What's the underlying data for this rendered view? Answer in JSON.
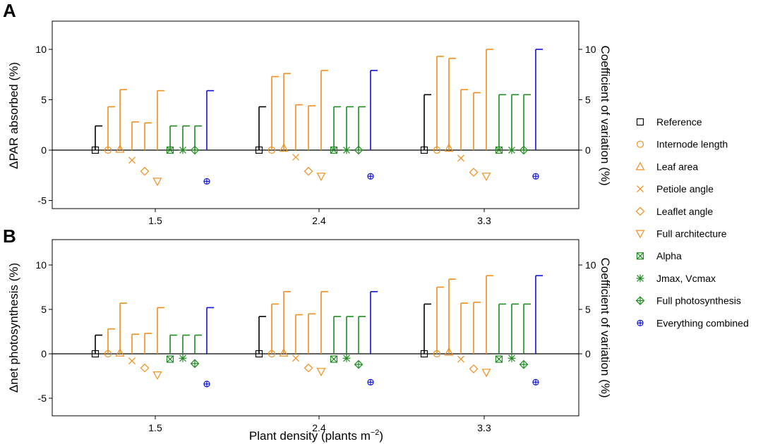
{
  "chart_data": {
    "type": "scatter",
    "shared_xlabel": "Plant density (plants m",
    "shared_xlabel_exponent": "−2",
    "shared_xlabel_suffix": ")",
    "categories": [
      "1.5",
      "2.4",
      "3.3"
    ],
    "legend": {
      "position": "right",
      "entries": [
        {
          "name": "Reference",
          "symbol": "square",
          "color": "#000000"
        },
        {
          "name": "Internode length",
          "symbol": "circle",
          "color": "#F28E1C"
        },
        {
          "name": "Leaf area",
          "symbol": "triangle-up",
          "color": "#F28E1C"
        },
        {
          "name": "Petiole angle",
          "symbol": "cross",
          "color": "#F28E1C"
        },
        {
          "name": "Leaflet angle",
          "symbol": "diamond",
          "color": "#F28E1C"
        },
        {
          "name": "Full architecture",
          "symbol": "triangle-down",
          "color": "#F28E1C"
        },
        {
          "name": "Alpha",
          "symbol": "boxed-x",
          "color": "#1E8C1E"
        },
        {
          "name": "Jmax, Vcmax",
          "symbol": "asterisk",
          "color": "#1E8C1E"
        },
        {
          "name": "Full photosynthesis",
          "symbol": "diamond-plus",
          "color": "#1E8C1E"
        },
        {
          "name": "Everything combined",
          "symbol": "circle-plus",
          "color": "#1010E0"
        }
      ]
    },
    "panels": [
      {
        "label": "A",
        "ylabel": "ΔPAR absorbed (%)",
        "y2label": "Coefficient of variation (%)",
        "ylim": [
          -5.8,
          12.8
        ],
        "y_ticks": [
          -5,
          0,
          5,
          10
        ],
        "y2_ticks": [
          0,
          5,
          10
        ],
        "reference_line": 0,
        "series": [
          {
            "name": "Reference",
            "mean_change": [
              0,
              0,
              0
            ],
            "cv": [
              2.4,
              4.3,
              5.5
            ]
          },
          {
            "name": "Internode length",
            "mean_change": [
              0,
              0,
              0
            ],
            "cv": [
              4.3,
              7.3,
              9.3
            ]
          },
          {
            "name": "Leaf area",
            "mean_change": [
              0.1,
              0.2,
              0.2
            ],
            "cv": [
              6.0,
              7.6,
              9.1
            ]
          },
          {
            "name": "Petiole angle",
            "mean_change": [
              -1.0,
              -0.7,
              -0.8
            ],
            "cv": [
              2.8,
              4.5,
              6.0
            ]
          },
          {
            "name": "Leaflet angle",
            "mean_change": [
              -2.1,
              -2.1,
              -2.2
            ],
            "cv": [
              2.7,
              4.4,
              5.7
            ]
          },
          {
            "name": "Full architecture",
            "mean_change": [
              -3.1,
              -2.6,
              -2.6
            ],
            "cv": [
              5.9,
              7.9,
              10.0
            ]
          },
          {
            "name": "Alpha",
            "mean_change": [
              0,
              0,
              0
            ],
            "cv": [
              2.4,
              4.3,
              5.5
            ]
          },
          {
            "name": "Jmax, Vcmax",
            "mean_change": [
              0,
              0,
              0
            ],
            "cv": [
              2.4,
              4.3,
              5.5
            ]
          },
          {
            "name": "Full photosynthesis",
            "mean_change": [
              0,
              0,
              0
            ],
            "cv": [
              2.4,
              4.3,
              5.5
            ]
          },
          {
            "name": "Everything combined",
            "mean_change": [
              -3.1,
              -2.6,
              -2.6
            ],
            "cv": [
              5.9,
              7.9,
              10.0
            ]
          }
        ]
      },
      {
        "label": "B",
        "ylabel": "Δnet photosynthesis (%)",
        "y2label": "Coefficient of variation (%)",
        "ylim": [
          -5.8,
          12.8
        ],
        "y_ticks": [
          -5,
          0,
          5,
          10
        ],
        "y2_ticks": [
          0,
          5,
          10
        ],
        "reference_line": 0,
        "series": [
          {
            "name": "Reference",
            "mean_change": [
              0,
              0,
              0
            ],
            "cv": [
              2.1,
              4.2,
              5.6
            ]
          },
          {
            "name": "Internode length",
            "mean_change": [
              0,
              0,
              0
            ],
            "cv": [
              2.8,
              5.6,
              7.5
            ]
          },
          {
            "name": "Leaf area",
            "mean_change": [
              0.1,
              0.1,
              0.2
            ],
            "cv": [
              5.7,
              7.0,
              8.4
            ]
          },
          {
            "name": "Petiole angle",
            "mean_change": [
              -0.8,
              -0.5,
              -0.6
            ],
            "cv": [
              2.2,
              4.4,
              5.7
            ]
          },
          {
            "name": "Leaflet angle",
            "mean_change": [
              -1.6,
              -1.6,
              -1.7
            ],
            "cv": [
              2.3,
              4.5,
              5.8
            ]
          },
          {
            "name": "Full architecture",
            "mean_change": [
              -2.4,
              -2.0,
              -2.1
            ],
            "cv": [
              5.2,
              7.0,
              8.8
            ]
          },
          {
            "name": "Alpha",
            "mean_change": [
              -0.6,
              -0.6,
              -0.6
            ],
            "cv": [
              2.1,
              4.2,
              5.6
            ]
          },
          {
            "name": "Jmax, Vcmax",
            "mean_change": [
              -0.5,
              -0.5,
              -0.5
            ],
            "cv": [
              2.1,
              4.2,
              5.6
            ]
          },
          {
            "name": "Full photosynthesis",
            "mean_change": [
              -1.1,
              -1.2,
              -1.2
            ],
            "cv": [
              2.1,
              4.2,
              5.6
            ]
          },
          {
            "name": "Everything combined",
            "mean_change": [
              -3.4,
              -3.2,
              -3.2
            ],
            "cv": [
              5.2,
              7.0,
              8.8
            ]
          }
        ]
      }
    ]
  }
}
